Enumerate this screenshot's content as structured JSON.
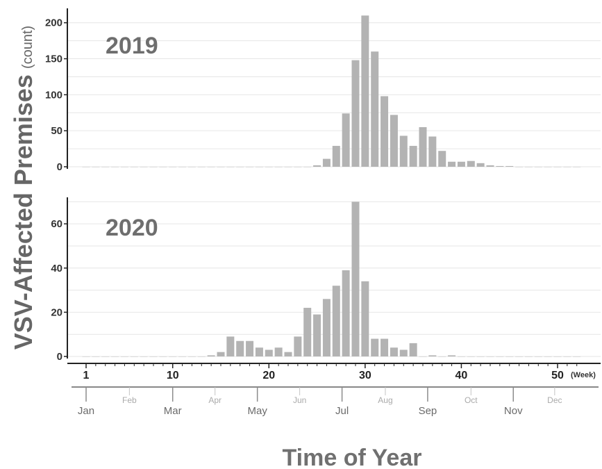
{
  "chart_data": [
    {
      "type": "bar",
      "title": "2019",
      "ylim": [
        0,
        220
      ],
      "yticks": [
        0,
        50,
        100,
        150,
        200
      ],
      "x": [
        1,
        2,
        3,
        4,
        5,
        6,
        7,
        8,
        9,
        10,
        11,
        12,
        13,
        14,
        15,
        16,
        17,
        18,
        19,
        20,
        21,
        22,
        23,
        24,
        25,
        26,
        27,
        28,
        29,
        30,
        31,
        32,
        33,
        34,
        35,
        36,
        37,
        38,
        39,
        40,
        41,
        42,
        43,
        44,
        45,
        46,
        47,
        48,
        49,
        50,
        51,
        52
      ],
      "values": [
        0,
        0,
        0,
        0,
        0,
        0,
        0,
        0,
        0,
        0,
        0,
        0,
        0,
        0,
        0,
        0,
        0,
        0,
        0,
        0,
        0,
        0,
        0,
        0,
        2,
        11,
        29,
        74,
        148,
        210,
        160,
        98,
        72,
        43,
        29,
        55,
        42,
        22,
        7,
        7,
        8,
        5,
        2,
        1,
        1,
        0,
        0,
        0,
        0,
        0,
        0,
        0
      ]
    },
    {
      "type": "bar",
      "title": "2020",
      "ylim": [
        0,
        72
      ],
      "yticks": [
        0,
        20,
        40,
        60
      ],
      "x": [
        1,
        2,
        3,
        4,
        5,
        6,
        7,
        8,
        9,
        10,
        11,
        12,
        13,
        14,
        15,
        16,
        17,
        18,
        19,
        20,
        21,
        22,
        23,
        24,
        25,
        26,
        27,
        28,
        29,
        30,
        31,
        32,
        33,
        34,
        35,
        36,
        37,
        38,
        39,
        40,
        41,
        42,
        43,
        44,
        45,
        46,
        47,
        48,
        49,
        50,
        51,
        52
      ],
      "values": [
        0,
        0,
        0,
        0,
        0,
        0,
        0,
        0,
        0,
        0,
        0,
        0,
        0,
        0.5,
        2,
        9,
        7,
        7,
        4,
        3,
        4,
        2,
        9,
        22,
        19,
        26,
        32,
        39,
        70,
        34,
        8,
        8,
        4,
        3,
        6,
        0,
        0.5,
        0,
        0.5,
        0,
        0,
        0,
        0,
        0,
        0,
        0,
        0,
        0,
        0,
        0,
        0,
        0
      ]
    }
  ],
  "ylabel": "VSV-Affected Premises",
  "ylabel_unit": "(count)",
  "xlabel": "Time of Year",
  "week_ticks": [
    1,
    10,
    20,
    30,
    40,
    50
  ],
  "week_unit": "(Week)",
  "months": [
    {
      "label": "Jan",
      "week": 1,
      "major": true
    },
    {
      "label": "Feb",
      "week": 5.5,
      "major": false
    },
    {
      "label": "Mar",
      "week": 10,
      "major": true
    },
    {
      "label": "Apr",
      "week": 14.4,
      "major": false
    },
    {
      "label": "May",
      "week": 18.8,
      "major": true
    },
    {
      "label": "Jun",
      "week": 23.2,
      "major": false
    },
    {
      "label": "Jul",
      "week": 27.6,
      "major": true
    },
    {
      "label": "Aug",
      "week": 32.1,
      "major": false
    },
    {
      "label": "Sep",
      "week": 36.5,
      "major": true
    },
    {
      "label": "Oct",
      "week": 41,
      "major": false
    },
    {
      "label": "Nov",
      "week": 45.4,
      "major": true
    },
    {
      "label": "Dec",
      "week": 49.7,
      "major": false
    }
  ],
  "colors": {
    "bar": "#b3b3b3",
    "grid": "#e6e6e6",
    "axis": "#222222",
    "month_axis": "#888888"
  }
}
